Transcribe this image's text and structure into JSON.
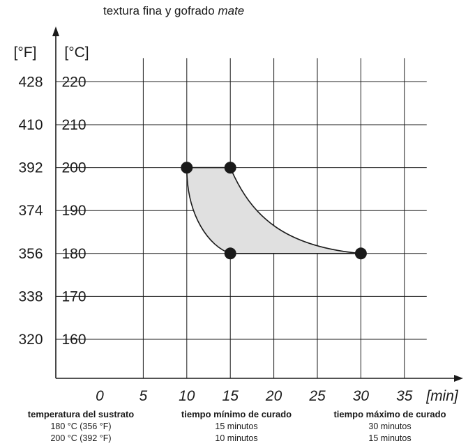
{
  "chart_data": {
    "type": "area",
    "title": "textura fina y gofrado",
    "title_emphasis": "mate",
    "x_unit": "[min]",
    "y_unit_left": "[°F]",
    "y_unit_right": "[°C]",
    "xlim": [
      0,
      35
    ],
    "ylim": [
      160,
      220
    ],
    "x_ticks": [
      0,
      5,
      10,
      15,
      20,
      25,
      30,
      35
    ],
    "y_ticks_c": [
      160,
      170,
      180,
      190,
      200,
      210,
      220
    ],
    "y_ticks_f": [
      320,
      338,
      356,
      374,
      392,
      410,
      428
    ],
    "grid": true,
    "points": [
      {
        "x": 10,
        "y": 200
      },
      {
        "x": 15,
        "y": 200
      },
      {
        "x": 15,
        "y": 180
      },
      {
        "x": 30,
        "y": 180
      }
    ],
    "region": {
      "top_edge": [
        [
          10,
          200
        ],
        [
          15,
          200
        ]
      ],
      "bottom_edge": [
        [
          15,
          180
        ],
        [
          30,
          180
        ]
      ],
      "left_curve": [
        [
          10,
          200
        ],
        [
          15,
          180
        ]
      ],
      "right_curve": [
        [
          15,
          200
        ],
        [
          30,
          180
        ]
      ]
    }
  },
  "colors": {
    "fill": "#e0e0e0",
    "line": "#1a1a1a",
    "grid": "#1a1a1a"
  },
  "table": {
    "columns": [
      {
        "header": "temperatura del sustrato",
        "rows": [
          "180 °C (356 °F)",
          "200 °C (392 °F)"
        ]
      },
      {
        "header": "tiempo mínimo de curado",
        "rows": [
          "15 minutos",
          "10 minutos"
        ]
      },
      {
        "header": "tiempo máximo de curado",
        "rows": [
          "30 minutos",
          "15 minutos"
        ]
      }
    ]
  }
}
